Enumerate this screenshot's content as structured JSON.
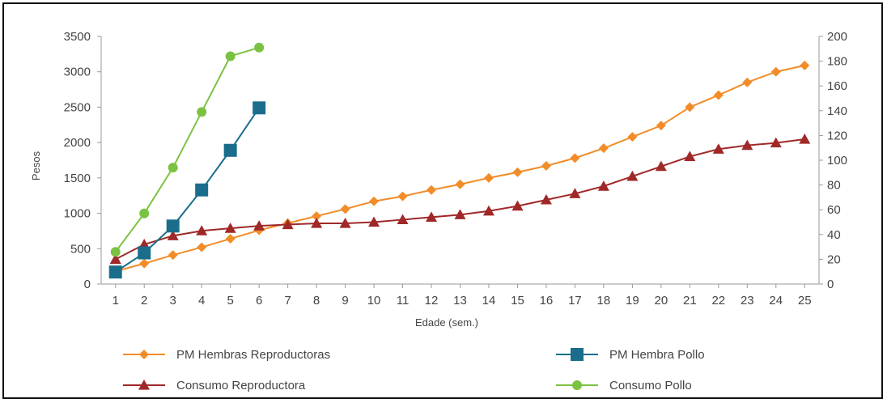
{
  "chart_data": {
    "type": "line",
    "xlabel": "Edade (sem.)",
    "ylabel": "Pesos",
    "x": [
      1,
      2,
      3,
      4,
      5,
      6,
      7,
      8,
      9,
      10,
      11,
      12,
      13,
      14,
      15,
      16,
      17,
      18,
      19,
      20,
      21,
      22,
      23,
      24,
      25
    ],
    "ylim_left": [
      0,
      3500
    ],
    "yticks_left": [
      "0",
      "500",
      "1000",
      "1500",
      "2000",
      "2500",
      "3000",
      "3500"
    ],
    "ylim_right": [
      0,
      200
    ],
    "yticks_right": [
      "0",
      "20",
      "40",
      "60",
      "80",
      "100",
      "120",
      "140",
      "160",
      "180",
      "200"
    ],
    "grid": false,
    "legend_position": "bottom",
    "series": [
      {
        "name": "PM Hembras Reproductoras",
        "axis": "left",
        "color": "#f28c28",
        "marker": "diamond",
        "x": [
          1,
          2,
          3,
          4,
          5,
          6,
          7,
          8,
          9,
          10,
          11,
          12,
          13,
          14,
          15,
          16,
          17,
          18,
          19,
          20,
          21,
          22,
          23,
          24,
          25
        ],
        "values": [
          180,
          290,
          410,
          520,
          640,
          760,
          860,
          960,
          1060,
          1170,
          1240,
          1330,
          1410,
          1500,
          1580,
          1670,
          1780,
          1920,
          2080,
          2240,
          2500,
          2670,
          2850,
          3000,
          3090
        ]
      },
      {
        "name": "PM Hembra Pollo",
        "axis": "left",
        "color": "#1a6e8c",
        "marker": "square",
        "x": [
          1,
          2,
          3,
          4,
          5,
          6
        ],
        "values": [
          170,
          440,
          820,
          1330,
          1890,
          2490
        ]
      },
      {
        "name": "Consumo Reproductora",
        "axis": "right",
        "color": "#a02828",
        "marker": "triangle",
        "x": [
          1,
          2,
          3,
          4,
          5,
          6,
          7,
          8,
          9,
          10,
          11,
          12,
          13,
          14,
          15,
          16,
          17,
          18,
          19,
          20,
          21,
          22,
          23,
          24,
          25
        ],
        "values": [
          20,
          32,
          39,
          43,
          45,
          47,
          48,
          49,
          49,
          50,
          52,
          54,
          56,
          59,
          63,
          68,
          73,
          79,
          87,
          95,
          103,
          109,
          112,
          114,
          117
        ]
      },
      {
        "name": "Consumo Pollo",
        "axis": "right",
        "color": "#7cc242",
        "marker": "circle",
        "x": [
          1,
          2,
          3,
          4,
          5,
          6
        ],
        "values": [
          26,
          57,
          94,
          139,
          184,
          191
        ]
      }
    ]
  }
}
